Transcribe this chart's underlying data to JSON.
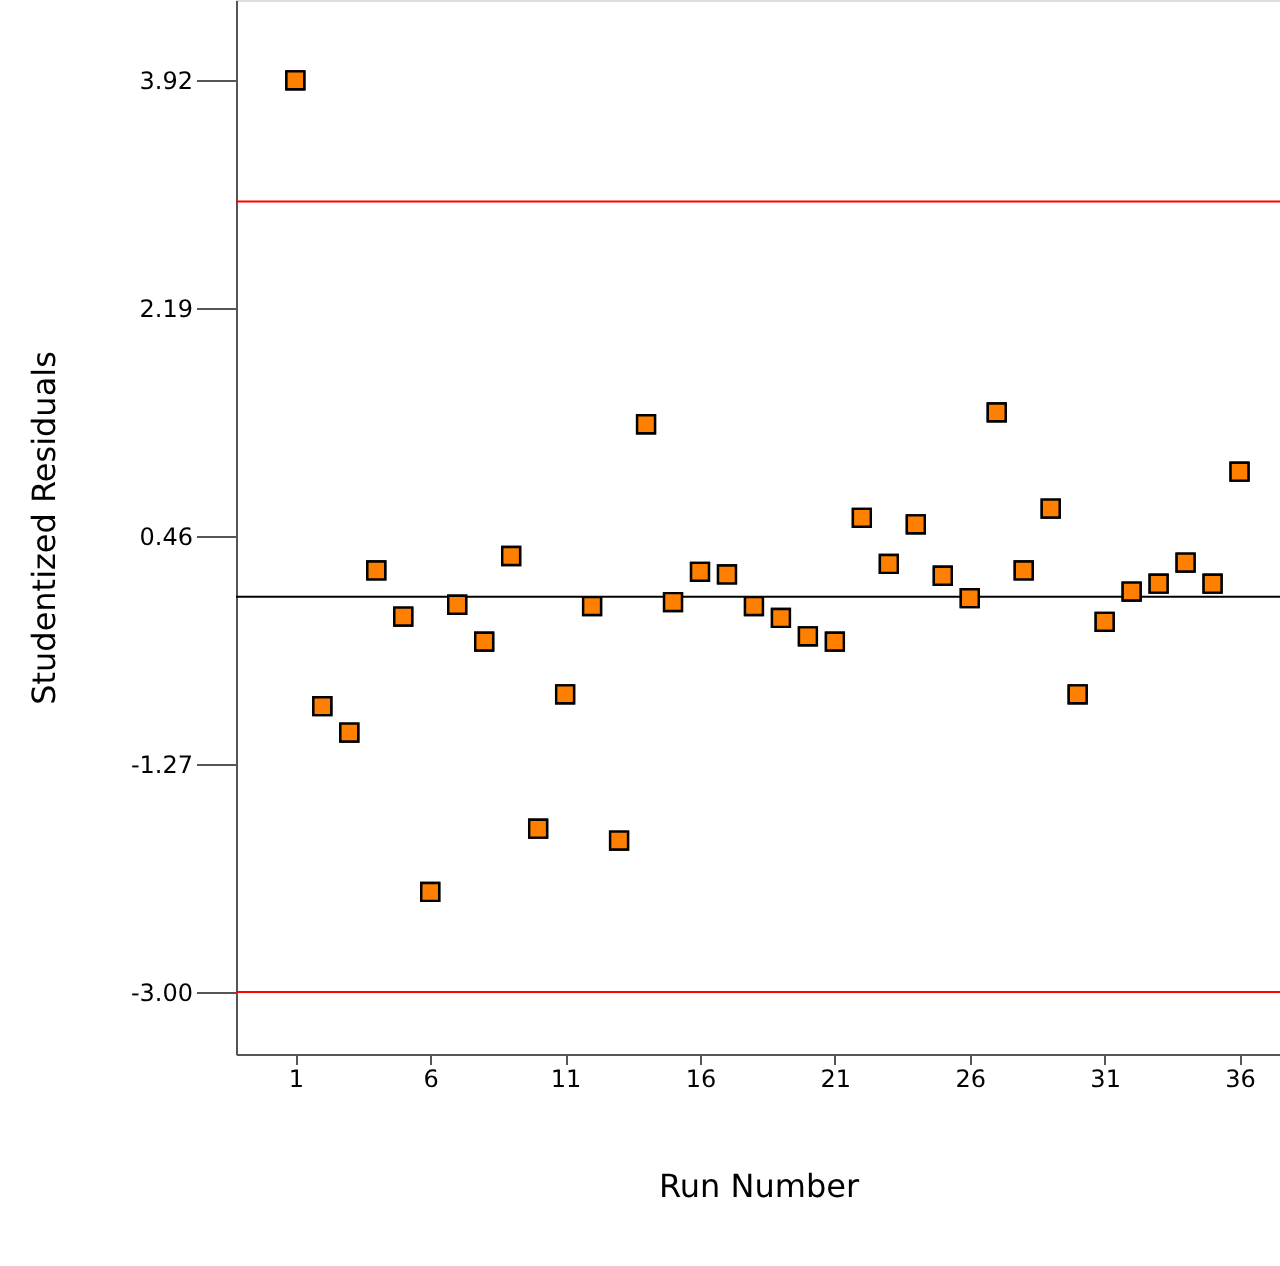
{
  "chart_data": {
    "type": "scatter",
    "xlabel": "Run Number",
    "ylabel": "Studentized Residuals",
    "x": [
      1,
      2,
      3,
      4,
      5,
      6,
      7,
      8,
      9,
      10,
      11,
      12,
      13,
      14,
      15,
      16,
      17,
      18,
      19,
      20,
      21,
      22,
      23,
      24,
      25,
      26,
      27,
      28,
      29,
      30,
      31,
      32,
      33,
      34,
      35,
      36
    ],
    "series": [
      {
        "color": "#ff8000",
        "values": [
          3.92,
          -0.83,
          -1.03,
          0.2,
          -0.15,
          -2.24,
          -0.06,
          -0.34,
          0.31,
          -1.76,
          -0.74,
          -0.07,
          -1.85,
          1.31,
          -0.04,
          0.19,
          0.17,
          -0.07,
          -0.16,
          -0.3,
          -0.34,
          0.6,
          0.25,
          0.55,
          0.16,
          -0.01,
          1.4,
          0.2,
          0.67,
          -0.74,
          -0.19,
          0.04,
          0.1,
          0.26,
          0.1,
          0.95
        ]
      }
    ],
    "marker": "square",
    "grid": false,
    "xlim": [
      -1.2,
      37.5
    ],
    "xticks": [
      1,
      6,
      11,
      16,
      21,
      26,
      31,
      36
    ],
    "ylim": [
      -3.47,
      4.53
    ],
    "yticks": [
      {
        "value": 3.92,
        "label": "3.92"
      },
      {
        "value": 2.19,
        "label": "2.19"
      },
      {
        "value": 0.46,
        "label": "0.46"
      },
      {
        "value": -1.27,
        "label": "-1.27"
      },
      {
        "value": -3.0,
        "label": "-3.00"
      }
    ],
    "ref_lines": [
      {
        "axis": "y",
        "value": 3.0,
        "color": "#ff0000"
      },
      {
        "axis": "y",
        "value": -3.0,
        "color": "#ff0000"
      },
      {
        "axis": "y",
        "value": 0,
        "color": "#000000"
      }
    ]
  }
}
